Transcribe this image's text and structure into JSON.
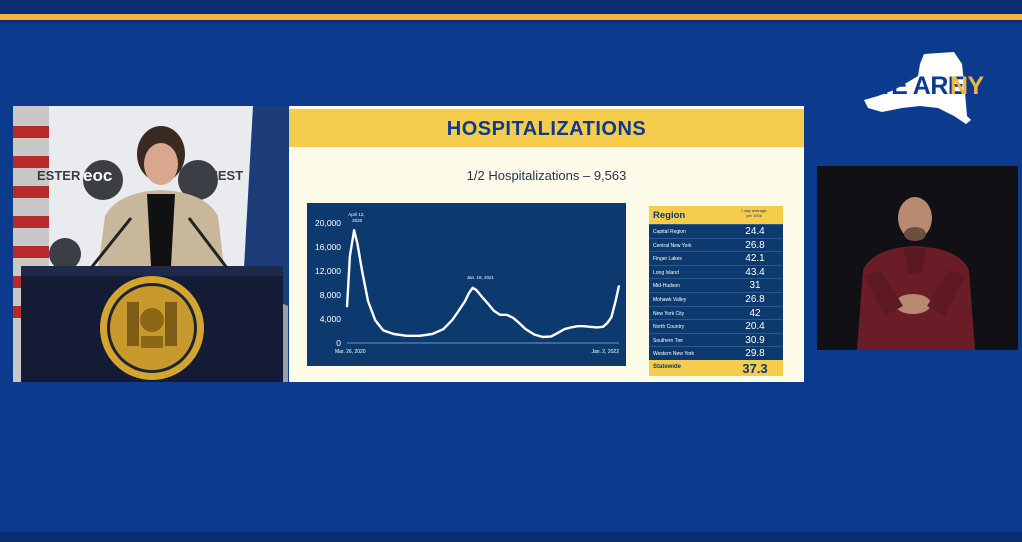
{
  "brand": {
    "we_are": "WE ARE",
    "ny": "NY"
  },
  "slide": {
    "title": "HOSPITALIZATIONS",
    "subtitle": "1/2 Hospitalizations – 9,563"
  },
  "speaker_background": {
    "banner_left": "ESTER",
    "banner_mid": "eoc",
    "banner_right": "OCHEST"
  },
  "chart_data": {
    "type": "line",
    "title": "",
    "xlabel": "",
    "ylabel": "",
    "ylim": [
      0,
      21000
    ],
    "yticks": [
      0,
      4000,
      8000,
      12000,
      16000,
      20000
    ],
    "ytick_labels": [
      "0",
      "4,000",
      "8,000",
      "12,000",
      "16,000",
      "20,000"
    ],
    "x_start_label": "Mar. 26, 2020",
    "x_end_label": "Jan. 2, 2022",
    "annotations": [
      {
        "text_line1": "April 12,",
        "text_line2": "2020",
        "x": "2020-04-12",
        "y": 18800
      },
      {
        "text_line1": "Jan. 19, 2021",
        "x": "2021-01-19",
        "y": 9200
      }
    ],
    "series": [
      {
        "x": [
          "2020-03-26",
          "2020-04-02",
          "2020-04-12",
          "2020-04-20",
          "2020-05-01",
          "2020-05-15",
          "2020-06-01",
          "2020-06-20",
          "2020-07-15",
          "2020-08-15",
          "2020-09-15",
          "2020-10-15",
          "2020-11-10",
          "2020-12-01",
          "2020-12-15",
          "2021-01-01",
          "2021-01-10",
          "2021-01-19",
          "2021-01-28",
          "2021-02-10",
          "2021-02-25",
          "2021-03-10",
          "2021-03-25",
          "2021-04-10",
          "2021-04-25",
          "2021-05-10",
          "2021-05-25",
          "2021-06-15",
          "2021-07-05",
          "2021-07-25",
          "2021-08-10",
          "2021-08-25",
          "2021-09-10",
          "2021-09-25",
          "2021-10-10",
          "2021-10-25",
          "2021-11-10",
          "2021-11-25",
          "2021-12-05",
          "2021-12-15",
          "2021-12-25",
          "2022-01-02"
        ],
        "values": [
          6000,
          14500,
          18800,
          16500,
          12000,
          7000,
          3800,
          2100,
          1500,
          1200,
          1200,
          1500,
          2300,
          3800,
          5200,
          7000,
          8300,
          9200,
          8800,
          7700,
          6500,
          5400,
          4700,
          4700,
          4200,
          3300,
          2300,
          1400,
          1000,
          1100,
          1700,
          2300,
          2600,
          2800,
          2800,
          2700,
          2600,
          2700,
          3300,
          4300,
          7000,
          9563
        ]
      }
    ],
    "grid": false,
    "line_color": "#ffffff",
    "background": "#0c3a6e"
  },
  "region_table": {
    "header_region": "Region",
    "header_avg": [
      "7-day average,",
      "per 100k"
    ],
    "rows": [
      {
        "name": "Capital Region",
        "value": "24.4"
      },
      {
        "name": "Central New York",
        "value": "26.8"
      },
      {
        "name": "Finger Lakes",
        "value": "42.1"
      },
      {
        "name": "Long Island",
        "value": "43.4"
      },
      {
        "name": "Mid-Hudson",
        "value": "31"
      },
      {
        "name": "Mohawk Valley",
        "value": "26.8"
      },
      {
        "name": "New York City",
        "value": "42"
      },
      {
        "name": "North Country",
        "value": "20.4"
      },
      {
        "name": "Southern Tier",
        "value": "30.9"
      },
      {
        "name": "Western New York",
        "value": "29.8"
      }
    ],
    "statewide_label": "Statewide",
    "statewide_value": "37.3"
  },
  "colors": {
    "background": "#0c3a8c",
    "accent_yellow": "#f5cc4c",
    "chart_navy": "#0c3a6e"
  }
}
